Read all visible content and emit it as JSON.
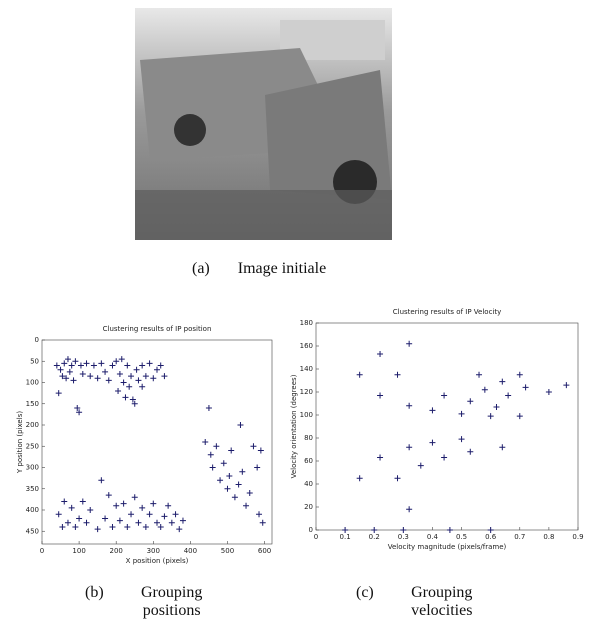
{
  "figure": {
    "panels": [
      {
        "label": "(a)",
        "caption": "Image initiale"
      },
      {
        "label": "(b)",
        "caption": "Grouping positions"
      },
      {
        "label": "(c)",
        "caption": "Grouping velocities"
      }
    ]
  },
  "chart_data": [
    {
      "type": "scatter",
      "title": "Clustering results of IP position",
      "x_label": "X position (pixels)",
      "y_label": "Y position (pixels)",
      "color": "#1c1c6b",
      "marker": "+",
      "xlim": [
        0,
        620
      ],
      "ylim": [
        480,
        0
      ],
      "xticks": [
        0,
        100,
        200,
        300,
        400,
        500,
        600
      ],
      "yticks": [
        0,
        50,
        100,
        150,
        200,
        250,
        300,
        350,
        400,
        450
      ],
      "x": [
        40,
        45,
        50,
        55,
        60,
        65,
        70,
        75,
        80,
        85,
        90,
        95,
        100,
        105,
        110,
        120,
        130,
        140,
        150,
        160,
        170,
        180,
        190,
        200,
        205,
        210,
        215,
        220,
        225,
        230,
        235,
        240,
        245,
        250,
        255,
        260,
        270,
        280,
        290,
        300,
        310,
        320,
        330,
        270,
        45,
        55,
        60,
        70,
        80,
        90,
        100,
        110,
        120,
        130,
        150,
        160,
        170,
        180,
        190,
        200,
        210,
        220,
        230,
        240,
        250,
        260,
        270,
        280,
        290,
        300,
        310,
        320,
        330,
        340,
        350,
        360,
        370,
        380,
        440,
        450,
        455,
        460,
        470,
        480,
        490,
        500,
        505,
        510,
        520,
        530,
        535,
        540,
        550,
        560,
        570,
        580,
        585,
        595,
        590
      ],
      "y": [
        60,
        125,
        70,
        85,
        55,
        90,
        45,
        75,
        60,
        95,
        50,
        160,
        170,
        60,
        80,
        55,
        85,
        60,
        90,
        55,
        75,
        95,
        60,
        50,
        120,
        80,
        45,
        100,
        135,
        60,
        110,
        85,
        140,
        150,
        70,
        95,
        60,
        85,
        55,
        90,
        70,
        60,
        85,
        110,
        410,
        440,
        380,
        430,
        395,
        440,
        420,
        380,
        430,
        400,
        445,
        330,
        420,
        365,
        440,
        390,
        425,
        385,
        440,
        410,
        370,
        430,
        395,
        440,
        410,
        385,
        430,
        440,
        415,
        390,
        430,
        410,
        445,
        425,
        240,
        160,
        270,
        300,
        250,
        330,
        290,
        350,
        320,
        260,
        370,
        340,
        200,
        310,
        390,
        360,
        250,
        300,
        410,
        430,
        260
      ]
    },
    {
      "type": "scatter",
      "title": "Clustering results of IP Velocity",
      "x_label": "Velocity magnitude (pixels/frame)",
      "y_label": "Velocity orientation (degrees)",
      "color": "#1c1c6b",
      "marker": "+",
      "xlim": [
        0,
        0.9
      ],
      "ylim": [
        0,
        180
      ],
      "xticks": [
        0,
        0.1,
        0.2,
        0.3,
        0.4,
        0.5,
        0.6,
        0.7,
        0.8,
        0.9
      ],
      "yticks": [
        0,
        20,
        40,
        60,
        80,
        100,
        120,
        140,
        160,
        180
      ],
      "x": [
        0.1,
        0.15,
        0.15,
        0.22,
        0.22,
        0.22,
        0.2,
        0.28,
        0.28,
        0.3,
        0.32,
        0.32,
        0.32,
        0.32,
        0.36,
        0.4,
        0.4,
        0.44,
        0.44,
        0.46,
        0.5,
        0.5,
        0.53,
        0.53,
        0.56,
        0.58,
        0.6,
        0.6,
        0.62,
        0.64,
        0.64,
        0.66,
        0.7,
        0.7,
        0.72,
        0.8,
        0.86
      ],
      "y": [
        0,
        135,
        45,
        153,
        117,
        63,
        0,
        135,
        45,
        0,
        162,
        108,
        72,
        18,
        56,
        104,
        76,
        117,
        63,
        0,
        79,
        101,
        112,
        68,
        135,
        122,
        99,
        0,
        107,
        72,
        129,
        117,
        135,
        99,
        124,
        120,
        126
      ]
    }
  ]
}
